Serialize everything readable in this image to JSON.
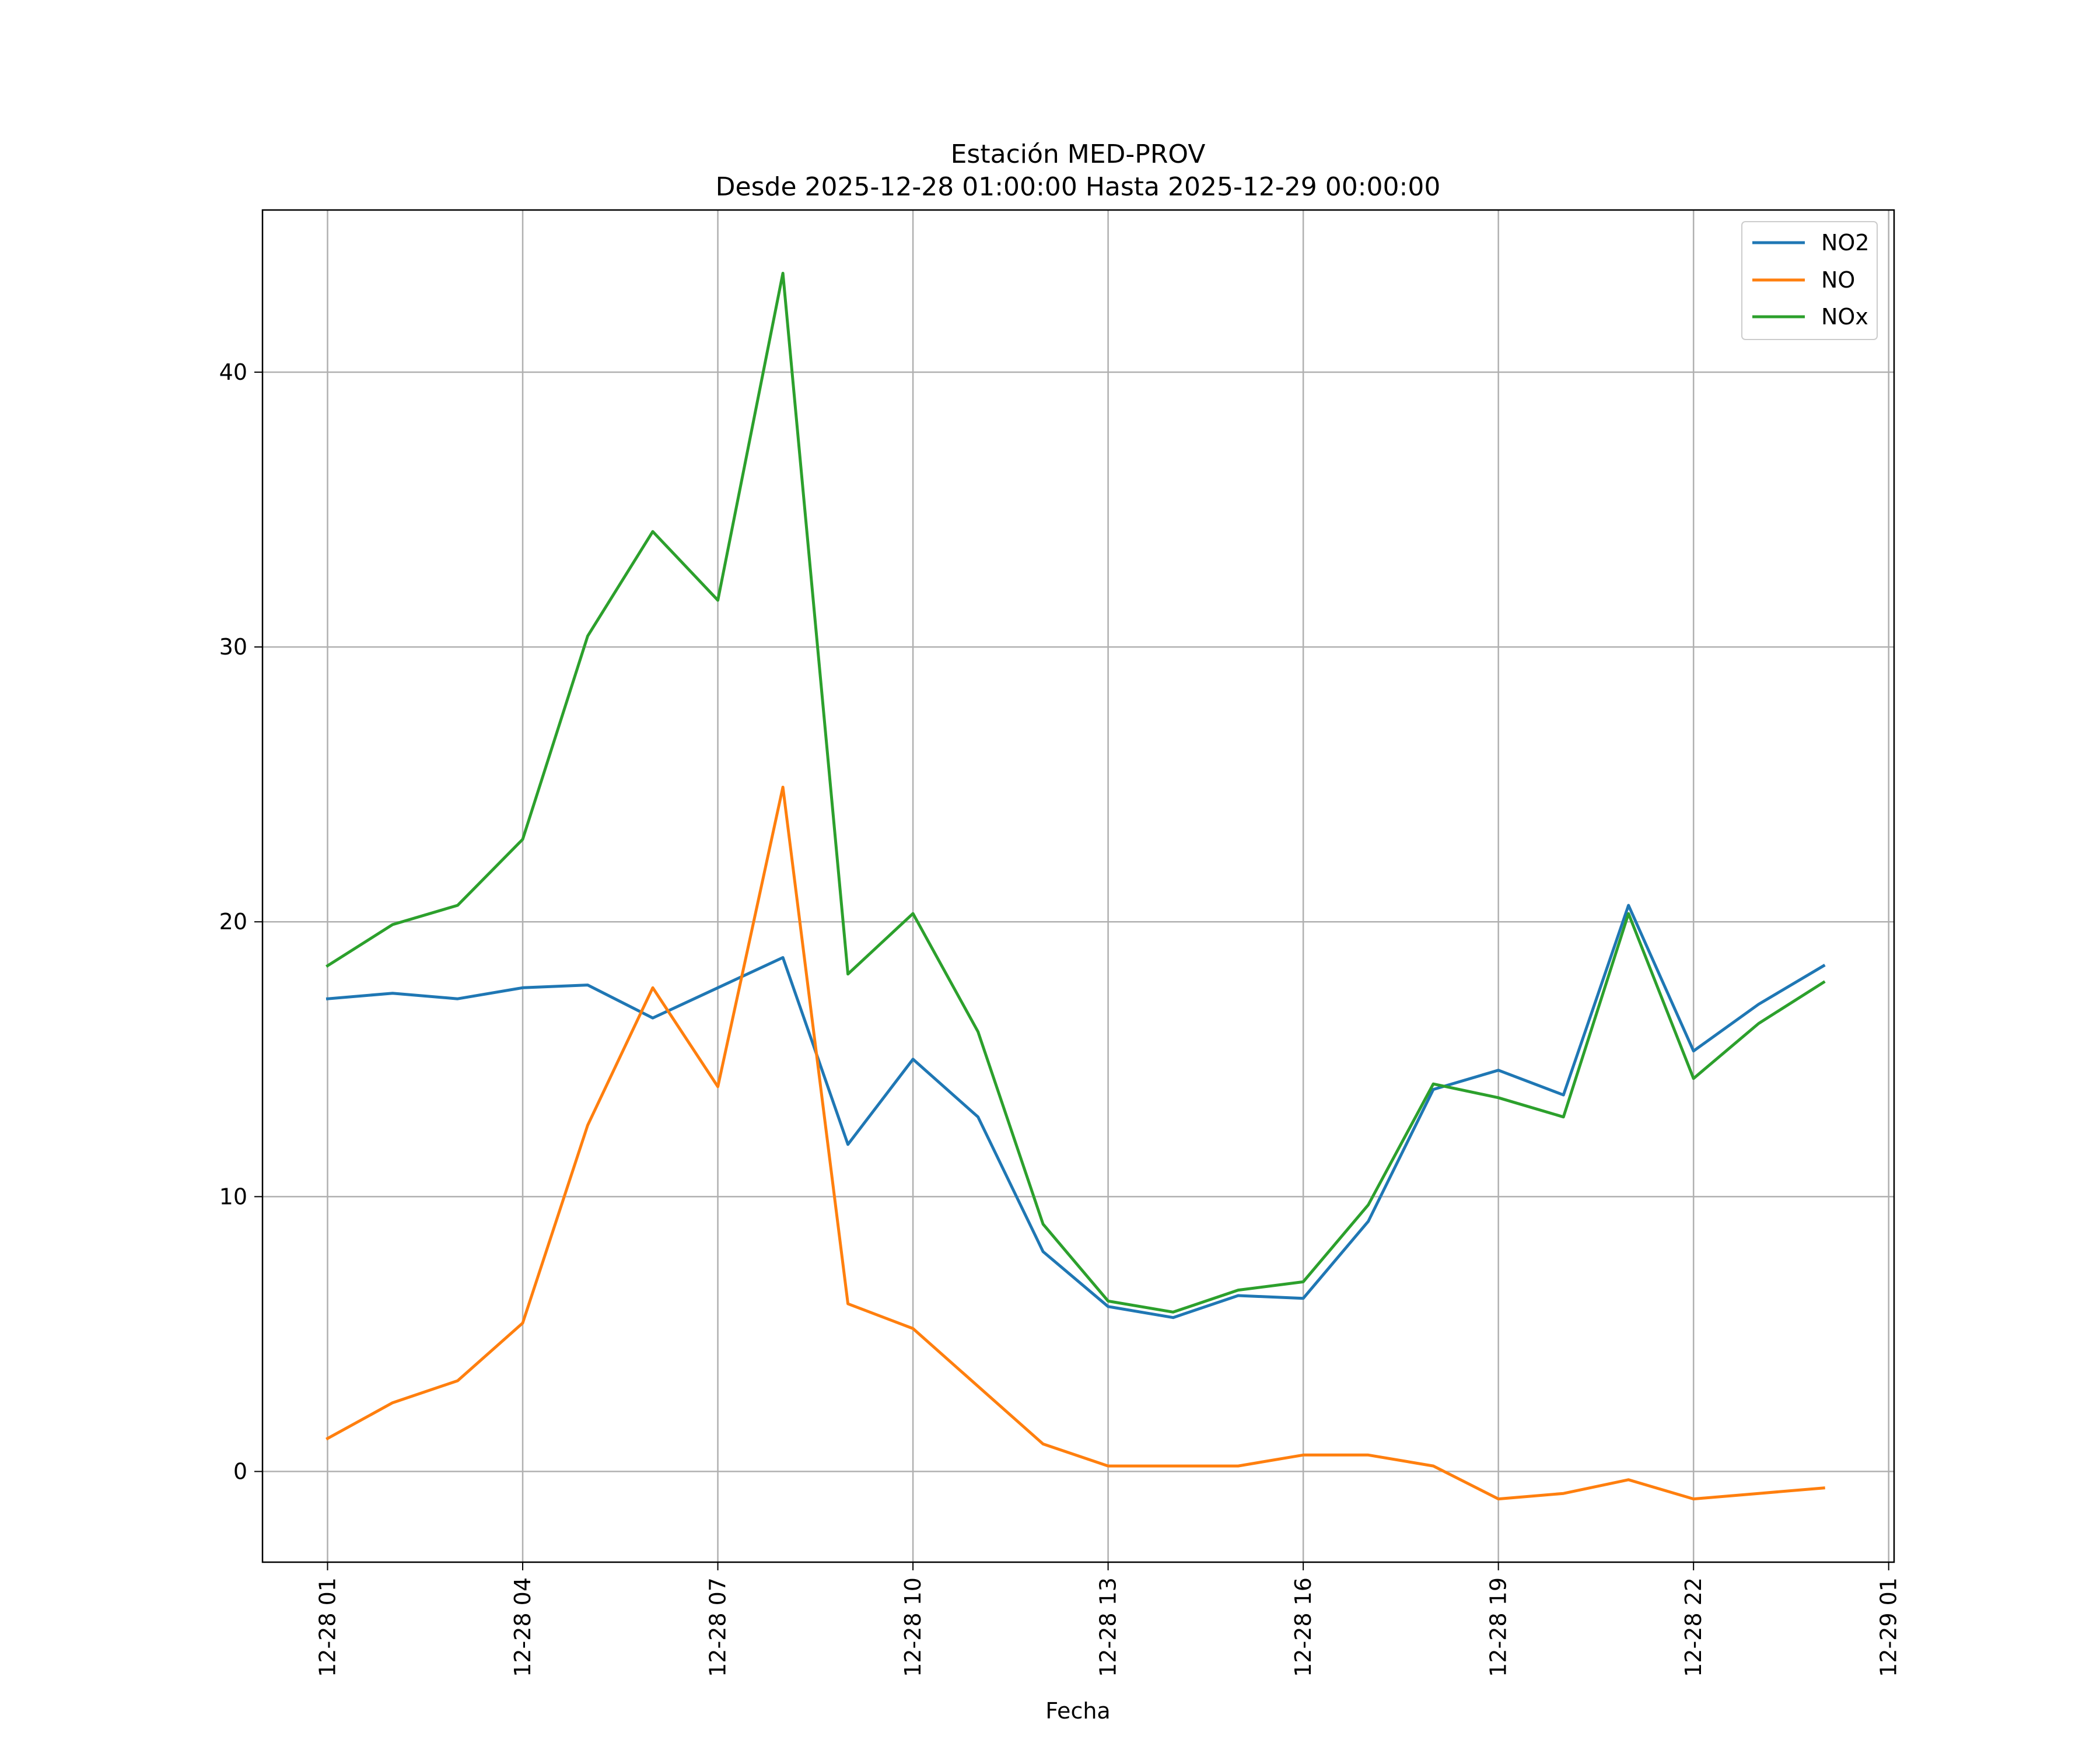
{
  "chart_data": {
    "type": "line",
    "title": "Estación MED-PROV",
    "subtitle": "Desde 2025-12-28 01:00:00 Hasta 2025-12-29 00:00:00",
    "xlabel": "Fecha",
    "ylabel": "",
    "x": [
      "2025-12-28 01:00",
      "2025-12-28 02:00",
      "2025-12-28 03:00",
      "2025-12-28 04:00",
      "2025-12-28 05:00",
      "2025-12-28 06:00",
      "2025-12-28 07:00",
      "2025-12-28 08:00",
      "2025-12-28 09:00",
      "2025-12-28 10:00",
      "2025-12-28 11:00",
      "2025-12-28 12:00",
      "2025-12-28 13:00",
      "2025-12-28 14:00",
      "2025-12-28 15:00",
      "2025-12-28 16:00",
      "2025-12-28 17:00",
      "2025-12-28 18:00",
      "2025-12-28 19:00",
      "2025-12-28 20:00",
      "2025-12-28 21:00",
      "2025-12-28 22:00",
      "2025-12-28 23:00",
      "2025-12-29 00:00"
    ],
    "xlim": [
      "2025-12-28 00:00",
      "2025-12-29 01:05"
    ],
    "ylim": [
      -3.3,
      45.9
    ],
    "x_ticks": [
      "2025-12-28 01:00",
      "2025-12-28 04:00",
      "2025-12-28 07:00",
      "2025-12-28 10:00",
      "2025-12-28 13:00",
      "2025-12-28 16:00",
      "2025-12-28 19:00",
      "2025-12-28 22:00",
      "2025-12-29 01:00"
    ],
    "x_tick_labels": [
      "12-28 01",
      "12-28 04",
      "12-28 07",
      "12-28 10",
      "12-28 13",
      "12-28 16",
      "12-28 19",
      "12-28 22",
      "12-29 01"
    ],
    "y_ticks": [
      0,
      10,
      20,
      30,
      40
    ],
    "y_tick_labels": [
      "0",
      "10",
      "20",
      "30",
      "40"
    ],
    "grid": true,
    "legend_position": "top-right",
    "series": [
      {
        "name": "NO2",
        "color": "#1f77b4",
        "values": [
          17.2,
          17.4,
          17.2,
          17.6,
          17.7,
          16.5,
          17.6,
          18.7,
          11.9,
          15.0,
          12.9,
          8.0,
          6.0,
          5.6,
          6.4,
          6.3,
          9.1,
          13.9,
          14.6,
          13.7,
          20.6,
          15.3,
          17.0,
          18.4
        ]
      },
      {
        "name": "NO",
        "color": "#ff7f0e",
        "values": [
          1.2,
          2.5,
          3.3,
          5.4,
          12.6,
          17.6,
          14.0,
          24.9,
          6.1,
          5.2,
          3.1,
          1.0,
          0.2,
          0.2,
          0.2,
          0.6,
          0.6,
          0.2,
          -1.0,
          -0.8,
          -0.3,
          -1.0,
          -0.8,
          -0.6
        ]
      },
      {
        "name": "NOx",
        "color": "#2ca02c",
        "values": [
          18.4,
          19.9,
          20.6,
          23.0,
          30.4,
          34.2,
          31.7,
          43.6,
          18.1,
          20.3,
          16.0,
          9.0,
          6.2,
          5.8,
          6.6,
          6.9,
          9.7,
          14.1,
          13.6,
          12.9,
          20.3,
          14.3,
          16.3,
          17.8
        ]
      }
    ]
  }
}
